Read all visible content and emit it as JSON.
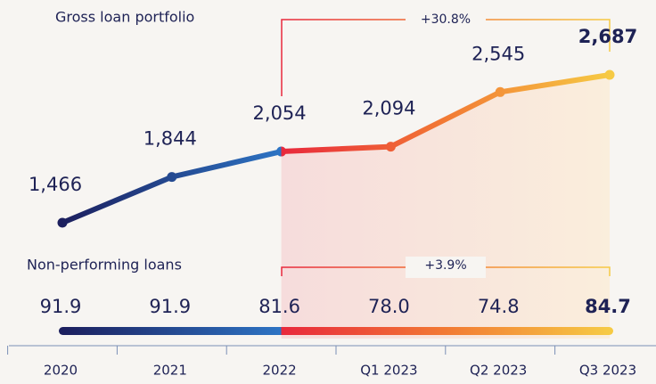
{
  "chart_data": [
    {
      "type": "line",
      "title": "Gross loan portfolio",
      "categories": [
        "2020",
        "2021",
        "2022",
        "Q1 2023",
        "Q2 2023",
        "Q3 2023"
      ],
      "values": [
        1466,
        1844,
        2054,
        2094,
        2545,
        2687
      ],
      "value_labels": [
        "1,466",
        "1,844",
        "2,054",
        "2,094",
        "2,545",
        "2,687"
      ],
      "annotation": "+30.8%"
    },
    {
      "type": "value-row",
      "title": "Non-performing loans",
      "values": [
        91.9,
        91.9,
        81.6,
        78,
        74.8,
        84.7
      ],
      "value_labels": [
        "91.9",
        "91.9",
        "81.6",
        "78.0",
        "74.8",
        "84.7"
      ],
      "annotation": "+3.9%"
    }
  ]
}
